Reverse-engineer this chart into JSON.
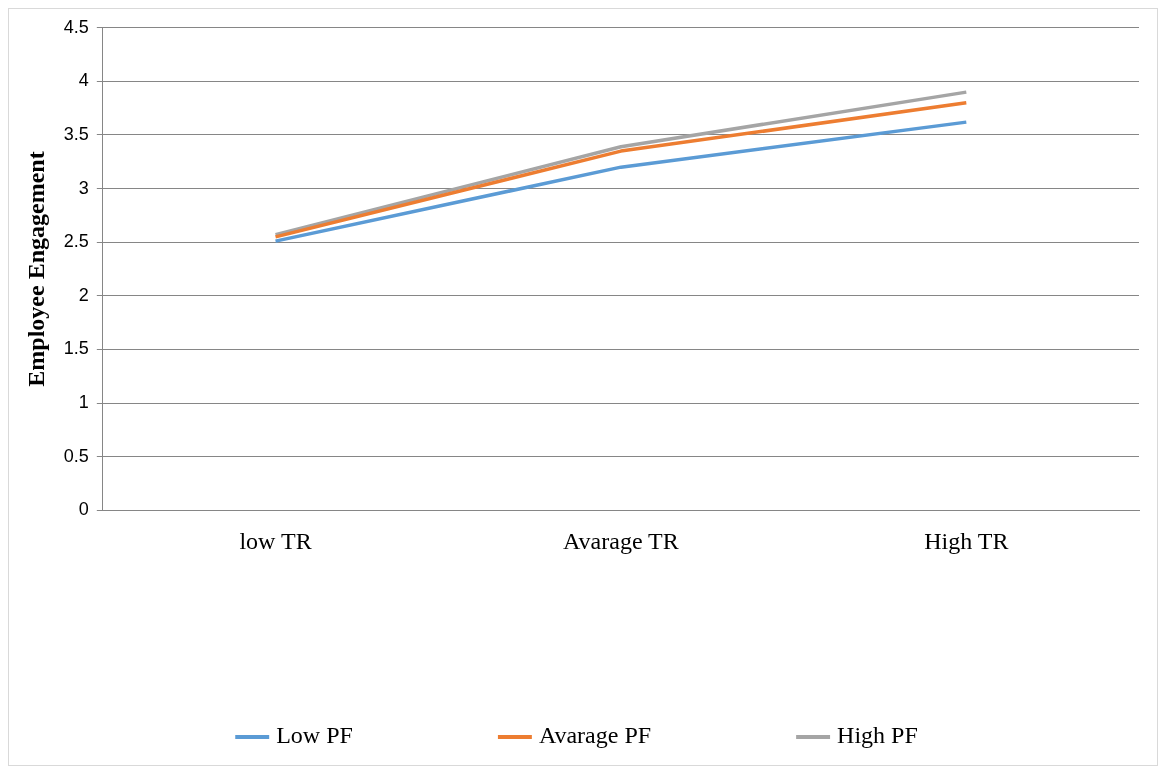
{
  "chart_data": {
    "type": "line",
    "ylabel": "Employee Engagement",
    "categories": [
      "low TR",
      "Avarage TR",
      "High TR"
    ],
    "series": [
      {
        "name": "Low PF",
        "color": "#5b9bd5",
        "values": [
          2.51,
          3.2,
          3.62
        ]
      },
      {
        "name": "Avarage PF",
        "color": "#ed7d31",
        "values": [
          2.55,
          3.35,
          3.8
        ]
      },
      {
        "name": "High PF",
        "color": "#a5a5a5",
        "values": [
          2.57,
          3.39,
          3.9
        ]
      }
    ],
    "ylim": [
      0,
      4.5
    ],
    "yticks": [
      0,
      0.5,
      1,
      1.5,
      2,
      2.5,
      3,
      3.5,
      4,
      4.5
    ],
    "grid": "y",
    "legend": "bottom",
    "marker": "none",
    "line_style": "solid"
  }
}
